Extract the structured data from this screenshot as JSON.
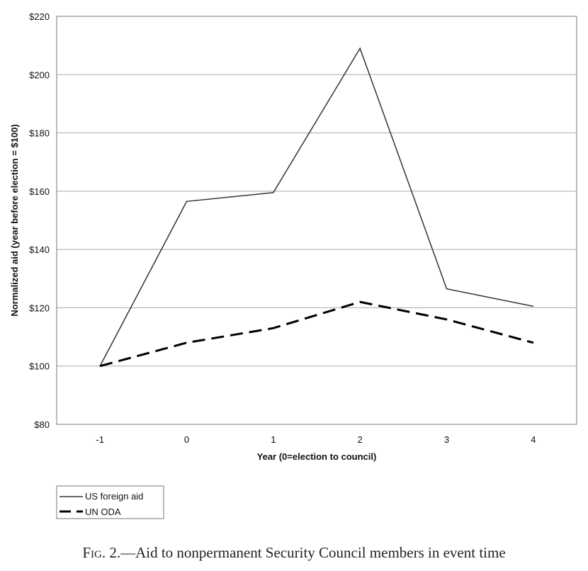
{
  "caption": {
    "fig": "Fig. 2.",
    "text": "—Aid to nonpermanent Security Council members in event time"
  },
  "chart_data": {
    "type": "line",
    "title": "",
    "xlabel": "Year (0=election to council)",
    "ylabel": "Normalized aid (year before election = $100)",
    "x": [
      -1,
      0,
      1,
      2,
      3,
      4
    ],
    "categories": [
      "-1",
      "0",
      "1",
      "2",
      "3",
      "4"
    ],
    "ylim": [
      80,
      220
    ],
    "yticks": [
      80,
      100,
      120,
      140,
      160,
      180,
      200,
      220
    ],
    "ytick_labels": [
      "$80",
      "$100",
      "$120",
      "$140",
      "$160",
      "$180",
      "$200",
      "$220"
    ],
    "grid": "horizontal",
    "legend_position": "bottom-left",
    "series": [
      {
        "name": "US foreign aid",
        "values": [
          100,
          156.5,
          159.5,
          209,
          126.5,
          120.5
        ],
        "color": "#333333",
        "style": "solid"
      },
      {
        "name": "UN ODA",
        "values": [
          100,
          108,
          113,
          122,
          116,
          108
        ],
        "color": "#000000",
        "style": "dashed"
      }
    ]
  }
}
